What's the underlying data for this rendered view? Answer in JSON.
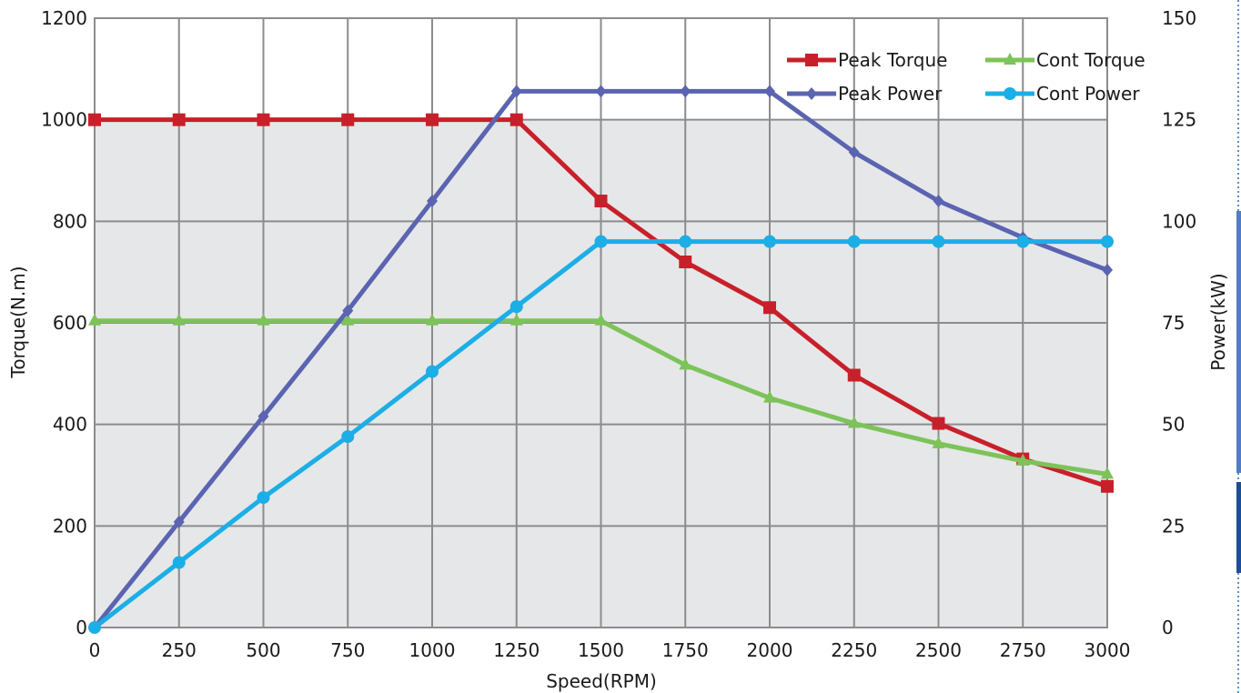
{
  "chart_data": {
    "type": "line",
    "title": "",
    "xlabel": "Speed(RPM)",
    "ylabel_left": "Torque(N.m)",
    "ylabel_right": "Power(kW)",
    "x": [
      0,
      250,
      500,
      750,
      1000,
      1250,
      1500,
      1750,
      2000,
      2250,
      2500,
      2750,
      3000
    ],
    "xlim": [
      0,
      3000
    ],
    "ylim_left": [
      0,
      1200
    ],
    "ylim_right": [
      0,
      150
    ],
    "x_ticks": [
      "0",
      "250",
      "500",
      "750",
      "1000",
      "1250",
      "1500",
      "1750",
      "2000",
      "2250",
      "2500",
      "2750",
      "3000"
    ],
    "y_left_ticks": [
      "0",
      "200",
      "400",
      "600",
      "800",
      "1000",
      "1200"
    ],
    "y_right_ticks": [
      "0",
      "25",
      "50",
      "75",
      "100",
      "125",
      "150"
    ],
    "grid": true,
    "banded_background": true,
    "legend_position": "top-right",
    "series": [
      {
        "name": "Peak Torque",
        "axis": "left",
        "color": "#c8202a",
        "marker": "square",
        "values": [
          1000,
          1000,
          1000,
          1000,
          1000,
          1000,
          840,
          720,
          630,
          497,
          402,
          332,
          278
        ]
      },
      {
        "name": "Cont Torque",
        "axis": "left",
        "color": "#7cc35a",
        "marker": "triangle",
        "values": [
          604,
          604,
          604,
          604,
          604,
          604,
          604,
          517,
          452,
          402,
          362,
          328,
          302
        ]
      },
      {
        "name": "Peak Power",
        "axis": "right",
        "color": "#5b64b0",
        "marker": "diamond",
        "values": [
          0,
          26,
          52,
          78,
          105,
          132,
          132,
          132,
          132,
          117,
          105,
          96,
          88
        ]
      },
      {
        "name": "Cont Power",
        "axis": "right",
        "color": "#1caee6",
        "marker": "circle",
        "values": [
          0,
          16,
          32,
          47,
          63,
          79,
          95,
          95,
          95,
          95,
          95,
          95,
          95
        ]
      }
    ]
  }
}
